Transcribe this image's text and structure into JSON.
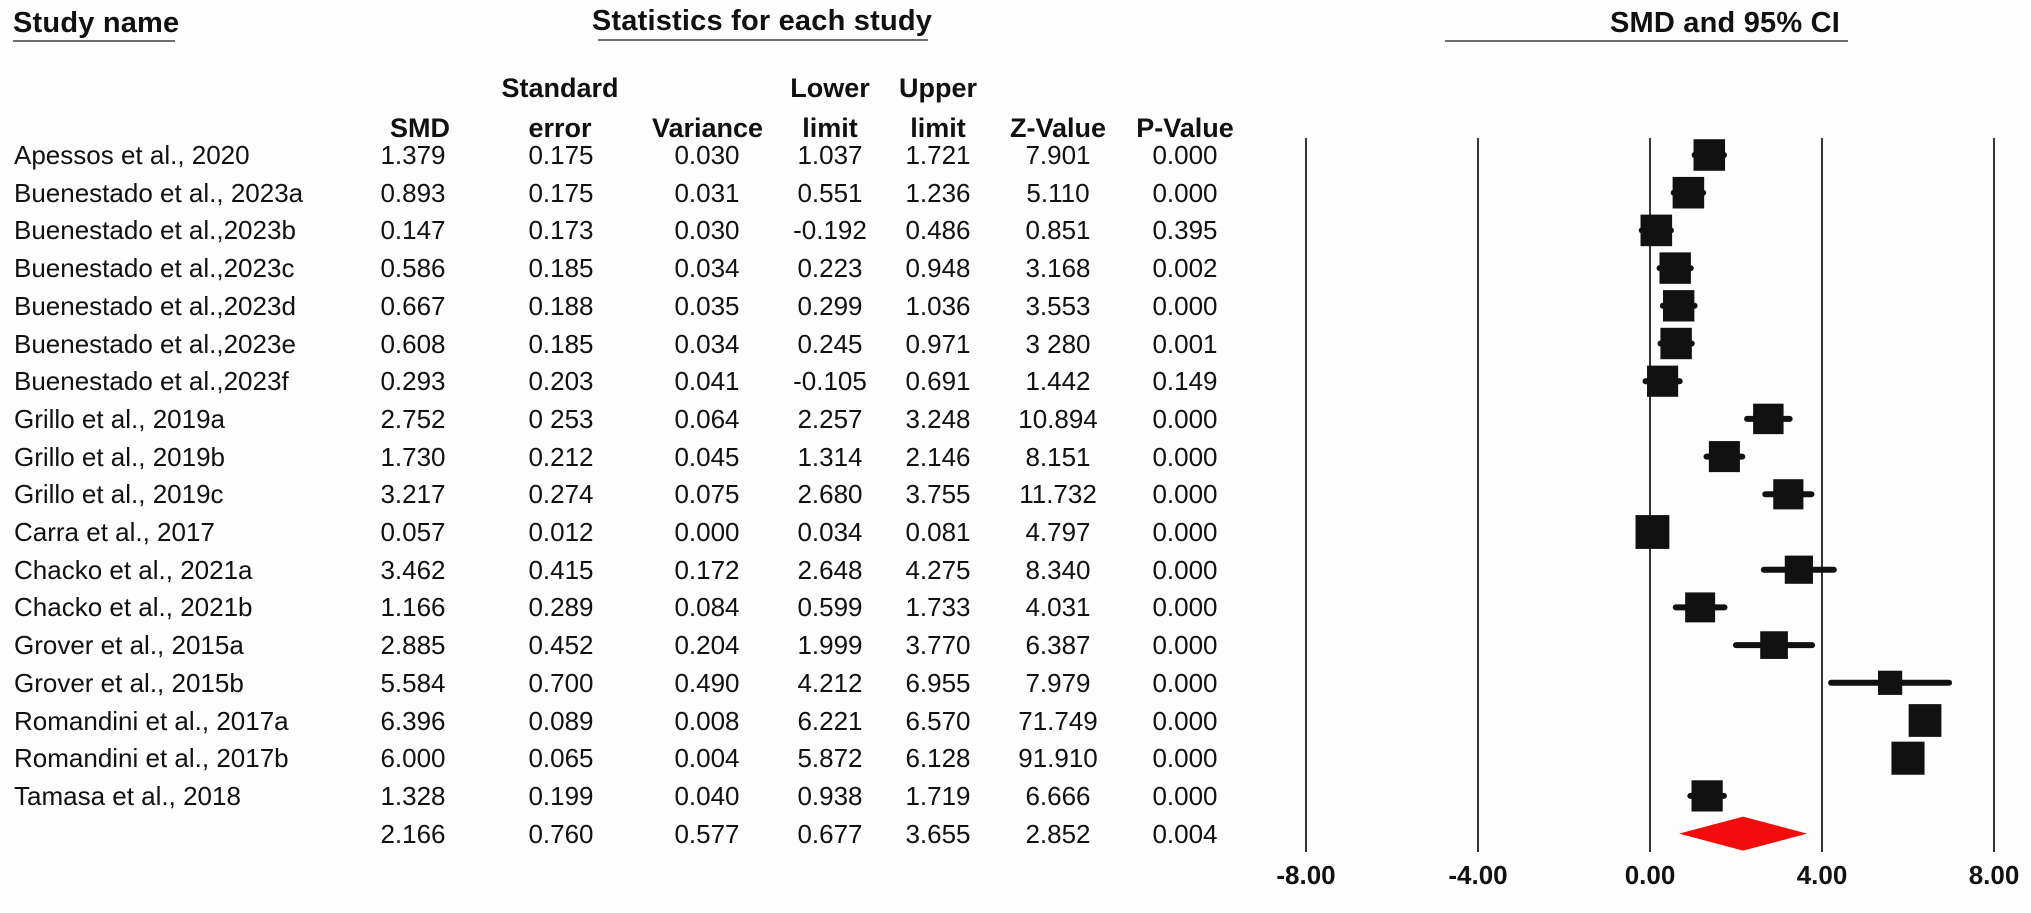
{
  "header": {
    "study_name_title": "Study name",
    "statistics_title": "Statistics for each study",
    "plot_title": "SMD and 95% CI",
    "columns": {
      "smd": "SMD",
      "se_line1": "Standard",
      "se_line2": "error",
      "variance": "Variance",
      "lower_line1": "Lower",
      "lower_line2": "limit",
      "upper_line1": "Upper",
      "upper_line2": "limit",
      "z": "Z-Value",
      "p": "P-Value"
    }
  },
  "chart_data": {
    "type": "forest",
    "title": "SMD and 95% CI",
    "xlabel": "SMD",
    "xlim": [
      -8,
      8
    ],
    "grid": false,
    "marker_color": "#111111",
    "summary_diamond_color": "#f20c0c",
    "x_ticks": [
      {
        "label": "-8.00",
        "value": -8
      },
      {
        "label": "-4.00",
        "value": -4
      },
      {
        "label": "0.00",
        "value": 0
      },
      {
        "label": "4.00",
        "value": 4
      },
      {
        "label": "8.00",
        "value": 8
      }
    ],
    "studies": [
      {
        "name": "Apessos et al., 2020",
        "smd": "1.379",
        "se": "0.175",
        "variance": "0.030",
        "lower": "1.037",
        "upper": "1.721",
        "z": "7.901",
        "p": "0.000"
      },
      {
        "name": "Buenestado et al., 2023a",
        "smd": "0.893",
        "se": "0.175",
        "variance": "0.031",
        "lower": "0.551",
        "upper": "1.236",
        "z": "5.110",
        "p": "0.000"
      },
      {
        "name": "Buenestado et al.,2023b",
        "smd": "0.147",
        "se": "0.173",
        "variance": "0.030",
        "lower": "-0.192",
        "upper": "0.486",
        "z": "0.851",
        "p": "0.395"
      },
      {
        "name": "Buenestado et al.,2023c",
        "smd": "0.586",
        "se": "0.185",
        "variance": "0.034",
        "lower": "0.223",
        "upper": "0.948",
        "z": "3.168",
        "p": "0.002"
      },
      {
        "name": "Buenestado et al.,2023d",
        "smd": "0.667",
        "se": "0.188",
        "variance": "0.035",
        "lower": "0.299",
        "upper": "1.036",
        "z": "3.553",
        "p": "0.000"
      },
      {
        "name": "Buenestado et al.,2023e",
        "smd": "0.608",
        "se": "0.185",
        "variance": "0.034",
        "lower": "0.245",
        "upper": "0.971",
        "z": "3 280",
        "p": "0.001"
      },
      {
        "name": "Buenestado et al.,2023f",
        "smd": "0.293",
        "se": "0.203",
        "variance": "0.041",
        "lower": "-0.105",
        "upper": "0.691",
        "z": "1.442",
        "p": "0.149"
      },
      {
        "name": "Grillo et al., 2019a",
        "smd": "2.752",
        "se": "0 253",
        "se_val": 0.253,
        "variance": "0.064",
        "lower": "2.257",
        "upper": "3.248",
        "z": "10.894",
        "p": "0.000"
      },
      {
        "name": "Grillo et al., 2019b",
        "smd": "1.730",
        "se": "0.212",
        "variance": "0.045",
        "lower": "1.314",
        "upper": "2.146",
        "z": "8.151",
        "p": "0.000"
      },
      {
        "name": "Grillo et al., 2019c",
        "smd": "3.217",
        "se": "0.274",
        "variance": "0.075",
        "lower": "2.680",
        "upper": "3.755",
        "z": "11.732",
        "p": "0.000"
      },
      {
        "name": "Carra et al., 2017",
        "smd": "0.057",
        "se": "0.012",
        "variance": "0.000",
        "lower": "0.034",
        "upper": "0.081",
        "z": "4.797",
        "p": "0.000"
      },
      {
        "name": "Chacko et al., 2021a",
        "smd": "3.462",
        "se": "0.415",
        "variance": "0.172",
        "lower": "2.648",
        "upper": "4.275",
        "z": "8.340",
        "p": "0.000"
      },
      {
        "name": "Chacko et al., 2021b",
        "smd": "1.166",
        "se": "0.289",
        "variance": "0.084",
        "lower": "0.599",
        "upper": "1.733",
        "z": "4.031",
        "p": "0.000"
      },
      {
        "name": "Grover et al., 2015a",
        "smd": "2.885",
        "se": "0.452",
        "variance": "0.204",
        "lower": "1.999",
        "upper": "3.770",
        "z": "6.387",
        "p": "0.000"
      },
      {
        "name": "Grover et al., 2015b",
        "smd": "5.584",
        "se": "0.700",
        "variance": "0.490",
        "lower": "4.212",
        "upper": "6.955",
        "z": "7.979",
        "p": "0.000"
      },
      {
        "name": "Romandini et al., 2017a",
        "smd": "6.396",
        "se": "0.089",
        "variance": "0.008",
        "lower": "6.221",
        "upper": "6.570",
        "z": "71.749",
        "p": "0.000"
      },
      {
        "name": "Romandini et al., 2017b",
        "smd": "6.000",
        "se": "0.065",
        "variance": "0.004",
        "lower": "5.872",
        "upper": "6.128",
        "z": "91.910",
        "p": "0.000"
      },
      {
        "name": "Tamasa  et al., 2018",
        "smd": "1.328",
        "se": "0.199",
        "variance": "0.040",
        "lower": "0.938",
        "upper": "1.719",
        "z": "6.666",
        "p": "0.000"
      }
    ],
    "summary": {
      "name": "",
      "smd": "2.166",
      "se": "0.760",
      "variance": "0.577",
      "lower": "0.677",
      "upper": "3.655",
      "z": "2.852",
      "p": "0.004"
    }
  }
}
